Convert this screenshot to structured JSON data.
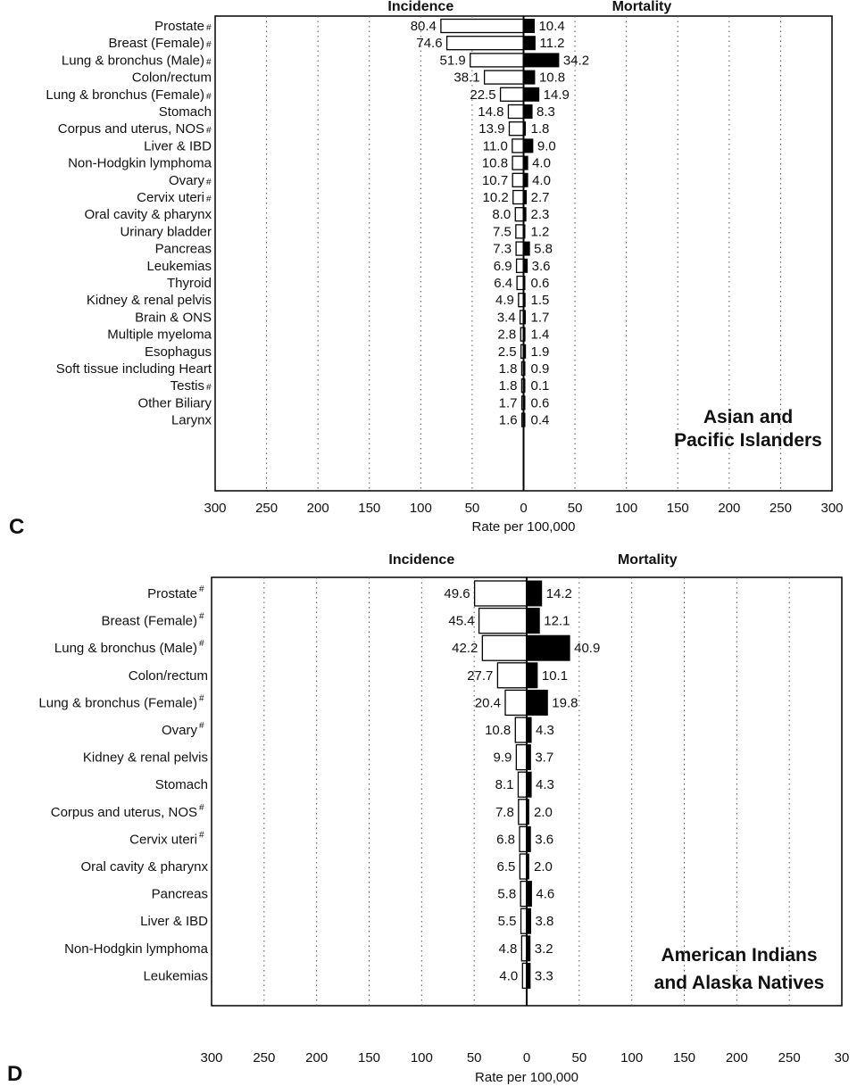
{
  "chart_data": [
    {
      "type": "bar",
      "panel_label": "C",
      "group_label_lines": [
        "Asian and",
        "Pacific Islanders"
      ],
      "left_header": "Incidence",
      "right_header": "Mortality",
      "xlabel": "Rate per 100,000",
      "xlim": [
        -300,
        300
      ],
      "tick_labels": [
        "300",
        "250",
        "200",
        "150",
        "100",
        "50",
        "0",
        "50",
        "100",
        "150",
        "200",
        "250",
        "300"
      ],
      "grid": true,
      "categories": [
        "Prostate",
        "Breast (Female)",
        "Lung & bronchus (Male)",
        "Colon/rectum",
        "Lung & bronchus (Female)",
        "Stomach",
        "Corpus and uterus, NOS",
        "Liver & IBD",
        "Non-Hodgkin lymphoma",
        "Ovary",
        "Cervix uteri",
        "Oral cavity & pharynx",
        "Urinary bladder",
        "Pancreas",
        "Leukemias",
        "Thyroid",
        "Kidney & renal pelvis",
        "Brain & ONS",
        "Multiple myeloma",
        "Esophagus",
        "Soft tissue including Heart",
        "Testis",
        "Other Biliary",
        "Larynx"
      ],
      "flagged": [
        true,
        true,
        true,
        false,
        true,
        false,
        true,
        false,
        false,
        true,
        true,
        false,
        false,
        false,
        false,
        false,
        false,
        false,
        false,
        false,
        false,
        true,
        false,
        false
      ],
      "flag_mark": "#",
      "series": [
        {
          "name": "Incidence",
          "values": [
            80.4,
            74.6,
            51.9,
            38.1,
            22.5,
            14.8,
            13.9,
            11.0,
            10.8,
            10.7,
            10.2,
            8.0,
            7.5,
            7.3,
            6.9,
            6.4,
            4.9,
            3.4,
            2.8,
            2.5,
            1.8,
            1.8,
            1.7,
            1.6
          ],
          "labels": [
            "80.4",
            "74.6",
            "51.9",
            "38.1",
            "22.5",
            "14.8",
            "13.9",
            "11.0",
            "10.8",
            "10.7",
            "10.2",
            "8.0",
            "7.5",
            "7.3",
            "6.9",
            "6.4",
            "4.9",
            "3.4",
            "2.8",
            "2.5",
            "1.8",
            "1.8",
            "1.7",
            "1.6"
          ],
          "color": "#ffffff"
        },
        {
          "name": "Mortality",
          "values": [
            10.4,
            11.2,
            34.2,
            10.8,
            14.9,
            8.3,
            1.8,
            9.0,
            4.0,
            4.0,
            2.7,
            2.3,
            1.2,
            5.8,
            3.6,
            0.6,
            1.5,
            1.7,
            1.4,
            1.9,
            0.9,
            0.1,
            0.6,
            0.4
          ],
          "labels": [
            "10.4",
            "11.2",
            "34.2",
            "10.8",
            "14.9",
            "8.3",
            "1.8",
            "9.0",
            "4.0",
            "4.0",
            "2.7",
            "2.3",
            "1.2",
            "5.8",
            "3.6",
            "0.6",
            "1.5",
            "1.7",
            "1.4",
            "1.9",
            "0.9",
            "0.1",
            "0.6",
            "0.4"
          ],
          "color": "#000000"
        }
      ]
    },
    {
      "type": "bar",
      "panel_label": "D",
      "group_label_lines": [
        "American Indians",
        "and Alaska Natives"
      ],
      "left_header": "Incidence",
      "right_header": "Mortality",
      "xlabel": "Rate per 100,000",
      "xlim": [
        -300,
        300
      ],
      "tick_labels": [
        "300",
        "250",
        "200",
        "150",
        "100",
        "50",
        "0",
        "50",
        "100",
        "150",
        "200",
        "250",
        "30"
      ],
      "grid": true,
      "categories": [
        "Prostate",
        "Breast (Female)",
        "Lung & bronchus (Male)",
        "Colon/rectum",
        "Lung & bronchus (Female)",
        "Ovary",
        "Kidney & renal pelvis",
        "Stomach",
        "Corpus and uterus, NOS",
        "Cervix uteri",
        "Oral cavity & pharynx",
        "Pancreas",
        "Liver & IBD",
        "Non-Hodgkin lymphoma",
        "Leukemias"
      ],
      "flagged": [
        true,
        true,
        true,
        false,
        true,
        true,
        false,
        false,
        true,
        true,
        false,
        false,
        false,
        false,
        false
      ],
      "flag_mark": "#",
      "series": [
        {
          "name": "Incidence",
          "values": [
            49.6,
            45.4,
            42.2,
            27.7,
            20.4,
            10.8,
            9.9,
            8.1,
            7.8,
            6.8,
            6.5,
            5.8,
            5.5,
            4.8,
            4.0
          ],
          "labels": [
            "49.6",
            "45.4",
            "42.2",
            "27.7",
            "20.4",
            "10.8",
            "9.9",
            "8.1",
            "7.8",
            "6.8",
            "6.5",
            "5.8",
            "5.5",
            "4.8",
            "4.0"
          ],
          "color": "#ffffff"
        },
        {
          "name": "Mortality",
          "values": [
            14.2,
            12.1,
            40.9,
            10.1,
            19.8,
            4.3,
            3.7,
            4.3,
            2.0,
            3.6,
            2.0,
            4.6,
            3.8,
            3.2,
            3.3
          ],
          "labels": [
            "14.2",
            "12.1",
            "40.9",
            "10.1",
            "19.8",
            "4.3",
            "3.7",
            "4.3",
            "2.0",
            "3.6",
            "2.0",
            "4.6",
            "3.8",
            "3.2",
            "3.3"
          ],
          "color": "#000000"
        }
      ]
    }
  ]
}
